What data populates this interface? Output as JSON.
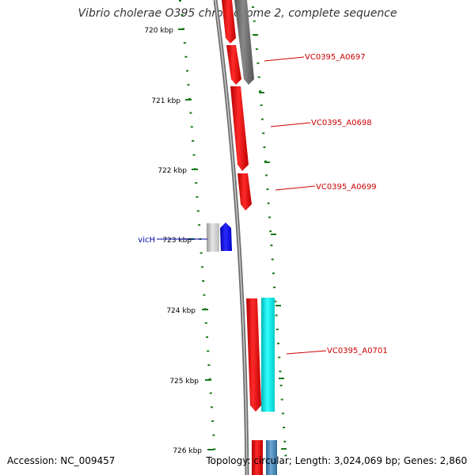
{
  "title": "Vibrio cholerae O395 chromosome 2, complete sequence",
  "footer": {
    "accession": "Accession: NC_009457",
    "topology": "Topology: circular; Length: 3,024,069 bp; Genes: 2,860"
  },
  "ticks": [
    {
      "id": "720",
      "label": "720 kbp"
    },
    {
      "id": "721",
      "label": "721 kbp"
    },
    {
      "id": "722",
      "label": "722 kbp"
    },
    {
      "id": "723",
      "label": "723 kbp"
    },
    {
      "id": "724",
      "label": "724 kbp"
    },
    {
      "id": "725",
      "label": "725 kbp"
    },
    {
      "id": "726",
      "label": "726 kbp"
    }
  ],
  "gene_labels": [
    {
      "id": "a0697",
      "text": "VC0395_A0697",
      "color": "#cc0000"
    },
    {
      "id": "a0698",
      "text": "VC0395_A0698",
      "color": "#cc0000"
    },
    {
      "id": "a0699",
      "text": "VC0395_A0699",
      "color": "#cc0000"
    },
    {
      "id": "vich",
      "text": "vicH",
      "color": "#0000aa"
    },
    {
      "id": "a0701",
      "text": "VC0395_A0701",
      "color": "#cc0000"
    }
  ],
  "colors": {
    "backbone": "#888888",
    "tick": "#1a7a1a",
    "gene_red": "#ff0000",
    "gene_gray": "#777777",
    "gene_blue": "#0000ff",
    "gene_cyan": "#00e5e5",
    "gene_steel": "#3a7fb0"
  }
}
